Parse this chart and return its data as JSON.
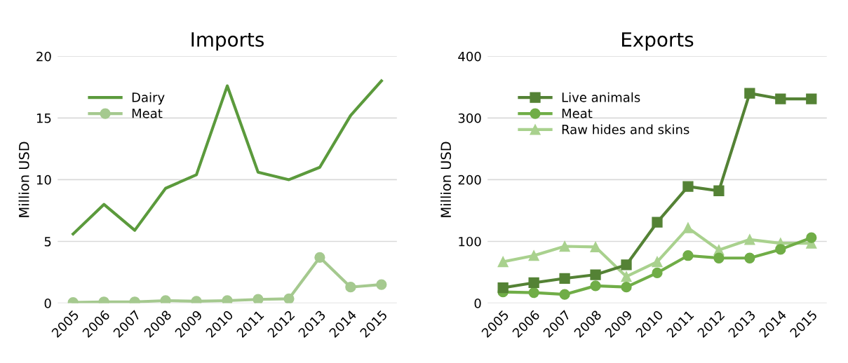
{
  "chart_data": [
    {
      "type": "line",
      "title": "Imports",
      "ylabel": "Million USD",
      "categories": [
        "2005",
        "2006",
        "2007",
        "2008",
        "2009",
        "2010",
        "2011",
        "2012",
        "2013",
        "2014",
        "2015"
      ],
      "series": [
        {
          "name": "Dairy",
          "color": "#5b9a3c",
          "marker": "none",
          "values": [
            5.6,
            8.0,
            5.9,
            9.3,
            10.4,
            17.6,
            10.6,
            10.0,
            11.0,
            15.2,
            18.0
          ]
        },
        {
          "name": "Meat",
          "color": "#a5c98f",
          "marker": "circle",
          "values": [
            0.05,
            0.1,
            0.1,
            0.2,
            0.15,
            0.2,
            0.3,
            0.35,
            3.7,
            1.3,
            1.5
          ]
        }
      ],
      "ylim": [
        0,
        20
      ],
      "yticks": [
        0,
        5,
        10,
        15,
        20
      ],
      "grid": "y",
      "legend": "top left"
    },
    {
      "type": "line",
      "title": "Exports",
      "ylabel": "Million USD",
      "categories": [
        "2005",
        "2006",
        "2007",
        "2008",
        "2009",
        "2010",
        "2011",
        "2012",
        "2013",
        "2014",
        "2015"
      ],
      "series": [
        {
          "name": "Live animals",
          "color": "#548235",
          "marker": "square",
          "values": [
            25,
            33,
            40,
            46,
            62,
            131,
            189,
            182,
            340,
            331,
            331
          ]
        },
        {
          "name": "Meat",
          "color": "#70ad47",
          "marker": "circle",
          "values": [
            18,
            17,
            14,
            28,
            26,
            49,
            77,
            73,
            73,
            87,
            106
          ]
        },
        {
          "name": "Raw hides and skins",
          "color": "#a9d18e",
          "marker": "triangle",
          "values": [
            67,
            77,
            92,
            91,
            43,
            67,
            122,
            86,
            103,
            97,
            97
          ]
        }
      ],
      "ylim": [
        0,
        400
      ],
      "yticks": [
        0,
        100,
        200,
        300,
        400
      ],
      "grid": "y",
      "legend": "top left"
    }
  ]
}
